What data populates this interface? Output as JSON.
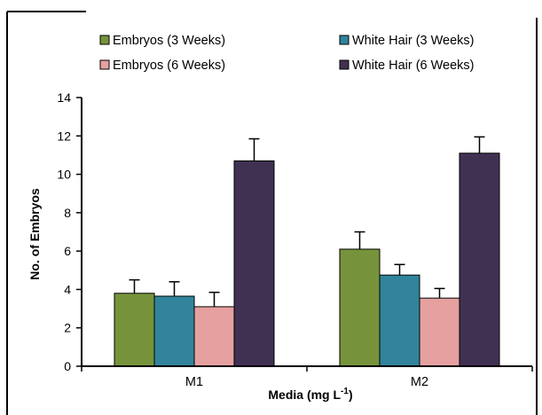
{
  "chart_data": {
    "type": "bar",
    "categories": [
      "M1",
      "M2"
    ],
    "series": [
      {
        "name": "Embryos (3 Weeks)",
        "color": "#76933C",
        "values": [
          3.8,
          6.1
        ],
        "errors": [
          0.7,
          0.9
        ]
      },
      {
        "name": "White Hair (3 Weeks)",
        "color": "#31849B",
        "values": [
          3.65,
          4.75
        ],
        "errors": [
          0.75,
          0.55
        ]
      },
      {
        "name": "Embryos (6 Weeks)",
        "color": "#E6A0A0",
        "values": [
          3.1,
          3.55
        ],
        "errors": [
          0.75,
          0.5
        ]
      },
      {
        "name": "White Hair (6 Weeks)",
        "color": "#403152",
        "values": [
          10.7,
          11.1
        ],
        "errors": [
          1.15,
          0.85
        ]
      }
    ],
    "xlabel_main": "Media (mg L",
    "xlabel_sup": "-1",
    "xlabel_close": ")",
    "ylabel": "No. of Embryos",
    "ylim": [
      0,
      14
    ],
    "yticks": [
      "0",
      "2",
      "4",
      "6",
      "8",
      "10",
      "12",
      "14"
    ],
    "grid": false,
    "legend_position": "top"
  }
}
